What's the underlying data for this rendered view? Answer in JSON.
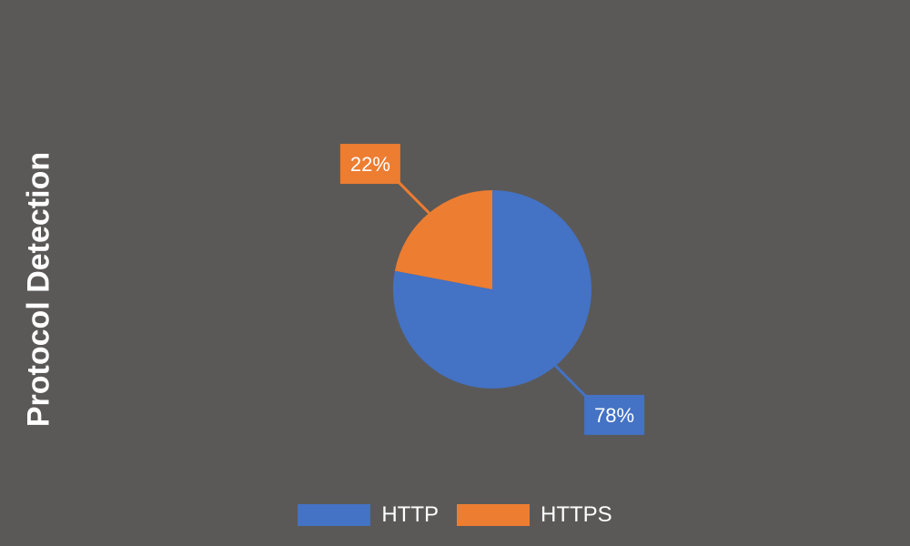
{
  "chart_data": {
    "type": "pie",
    "ylabel": "Protocol Detection",
    "series": [
      {
        "name": "HTTP",
        "value": 78,
        "label": "78%",
        "color": "#4472c4"
      },
      {
        "name": "HTTPS",
        "value": 22,
        "label": "22%",
        "color": "#ed7d31"
      }
    ],
    "legend_position": "bottom",
    "background_color": "#5a5958"
  }
}
